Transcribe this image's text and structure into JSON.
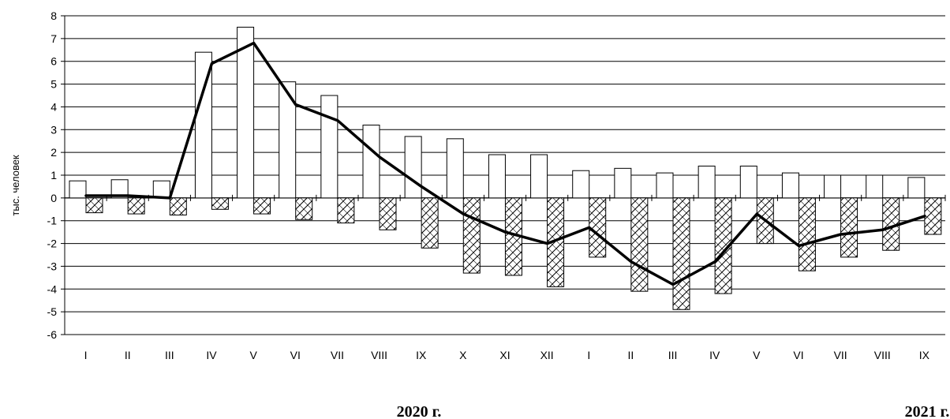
{
  "chart_data": {
    "type": "bar",
    "ylabel": "тыс. человек",
    "ylim": [
      -6,
      8
    ],
    "yticks": [
      8,
      7,
      6,
      5,
      4,
      3,
      2,
      1,
      0,
      -1,
      -2,
      -3,
      -4,
      -5,
      -6
    ],
    "grid": true,
    "categories": [
      "I",
      "II",
      "III",
      "IV",
      "V",
      "VI",
      "VII",
      "VIII",
      "IX",
      "X",
      "XI",
      "XII",
      "I",
      "II",
      "III",
      "IV",
      "V",
      "VI",
      "VII",
      "VIII",
      "IX"
    ],
    "year_labels": [
      "2020 г.",
      "2021 г."
    ],
    "series": [
      {
        "style": "bar-white",
        "values": [
          0.75,
          0.8,
          0.75,
          6.4,
          7.5,
          5.1,
          4.5,
          3.2,
          2.7,
          2.6,
          1.9,
          1.9,
          1.2,
          1.3,
          1.1,
          1.4,
          1.4,
          1.1,
          1.0,
          1.0,
          0.9
        ]
      },
      {
        "style": "bar-hatched",
        "values": [
          -0.65,
          -0.7,
          -0.75,
          -0.5,
          -0.7,
          -0.95,
          -1.1,
          -1.4,
          -2.2,
          -3.3,
          -3.4,
          -3.9,
          -2.6,
          -4.1,
          -4.9,
          -4.2,
          -2.0,
          -3.2,
          -2.6,
          -2.3,
          -1.6
        ]
      },
      {
        "style": "line",
        "values": [
          0.1,
          0.1,
          0.0,
          5.9,
          6.8,
          4.1,
          3.4,
          1.8,
          0.5,
          -0.7,
          -1.5,
          -2.0,
          -1.3,
          -2.8,
          -3.8,
          -2.8,
          -0.7,
          -2.1,
          -1.6,
          -1.4,
          -0.8
        ]
      }
    ]
  }
}
